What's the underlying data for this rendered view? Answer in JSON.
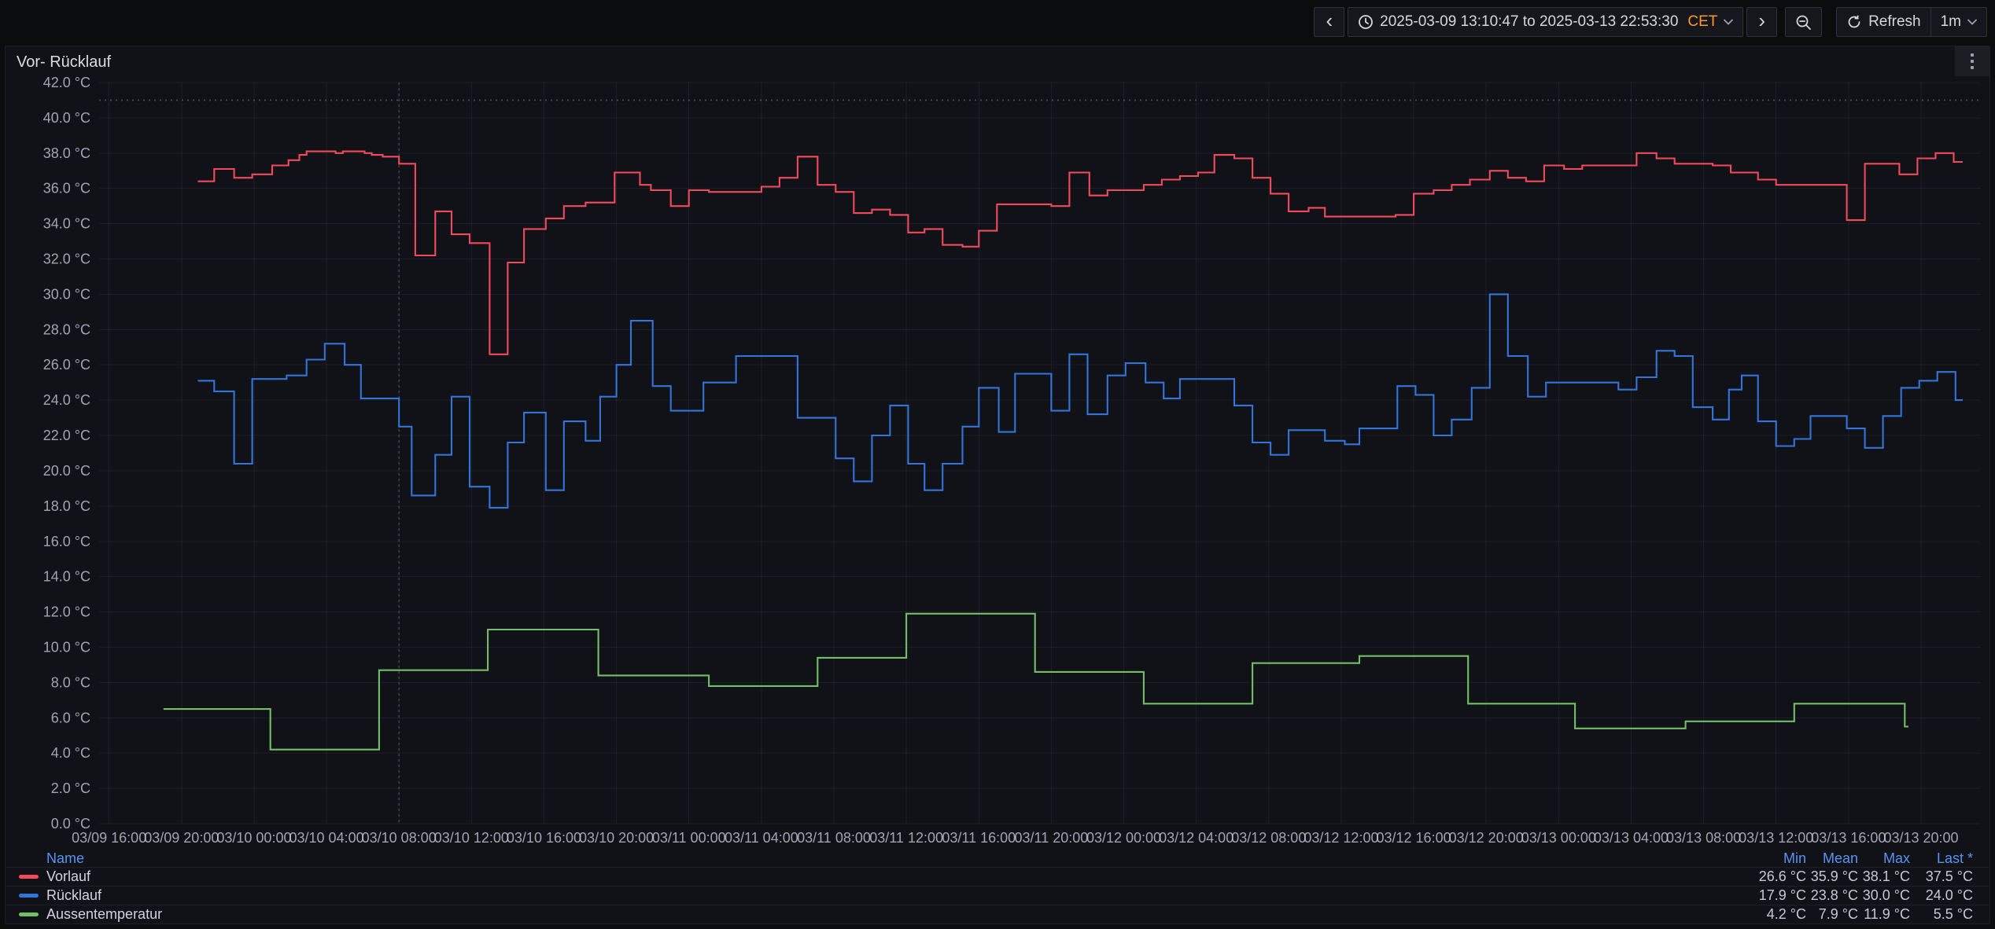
{
  "toolbar": {
    "prev_label": "‹",
    "next_label": "›",
    "time_range": "2025-03-09 13:10:47 to 2025-03-13 22:53:30",
    "timezone": "CET",
    "refresh_label": "Refresh",
    "refresh_interval": "1m"
  },
  "panel": {
    "title": "Vor- Rücklauf"
  },
  "icons": {
    "clock": "clock-outline-circle",
    "chevron_down": "caret-down-svg",
    "zoom_out": "magnifier-minus",
    "refresh": "circular-arrow",
    "kebab": "three-vertical-dots"
  },
  "colors": {
    "vorlauf_red": "#F2495C",
    "ruecklauf_blue": "#3274D9",
    "aussen_green": "#73BF69",
    "header_blue": "#5794F2",
    "timezone_orange": "#FF9830",
    "axis_text": "rgba(204,204,220,0.78)",
    "grid": "rgba(204,204,220,0.07)"
  },
  "legend": {
    "headers": {
      "name": "Name",
      "min": "Min",
      "mean": "Mean",
      "max": "Max",
      "last": "Last *"
    },
    "rows": [
      {
        "name": "Vorlauf",
        "color": "#F2495C",
        "min": "26.6 °C",
        "mean": "35.9 °C",
        "max": "38.1 °C",
        "last": "37.5 °C"
      },
      {
        "name": "Rücklauf",
        "color": "#3274D9",
        "min": "17.9 °C",
        "mean": "23.8 °C",
        "max": "30.0 °C",
        "last": "24.0 °C"
      },
      {
        "name": "Aussentemperatur",
        "color": "#73BF69",
        "min": "4.2 °C",
        "mean": "7.9 °C",
        "max": "11.9 °C",
        "last": "5.5 °C"
      }
    ]
  },
  "chart_data": {
    "type": "line",
    "step": "after",
    "x_unit": "hours after 03/09 16:00",
    "xlim": [
      -0.55,
      103.3
    ],
    "ylim": [
      0,
      42
    ],
    "grid": true,
    "threshold": {
      "value": 41,
      "style": "dotted"
    },
    "annotation_vline": {
      "t": 16,
      "at_label": "03/10 08:00",
      "style": "dashed"
    },
    "y_ticks": [
      {
        "v": 0,
        "label": "0.0 °C"
      },
      {
        "v": 2,
        "label": "2.0 °C"
      },
      {
        "v": 4,
        "label": "4.0 °C"
      },
      {
        "v": 6,
        "label": "6.0 °C"
      },
      {
        "v": 8,
        "label": "8.0 °C"
      },
      {
        "v": 10,
        "label": "10.0 °C"
      },
      {
        "v": 12,
        "label": "12.0 °C"
      },
      {
        "v": 14,
        "label": "14.0 °C"
      },
      {
        "v": 16,
        "label": "16.0 °C"
      },
      {
        "v": 18,
        "label": "18.0 °C"
      },
      {
        "v": 20,
        "label": "20.0 °C"
      },
      {
        "v": 22,
        "label": "22.0 °C"
      },
      {
        "v": 24,
        "label": "24.0 °C"
      },
      {
        "v": 26,
        "label": "26.0 °C"
      },
      {
        "v": 28,
        "label": "28.0 °C"
      },
      {
        "v": 30,
        "label": "30.0 °C"
      },
      {
        "v": 32,
        "label": "32.0 °C"
      },
      {
        "v": 34,
        "label": "34.0 °C"
      },
      {
        "v": 36,
        "label": "36.0 °C"
      },
      {
        "v": 38,
        "label": "38.0 °C"
      },
      {
        "v": 40,
        "label": "40.0 °C"
      },
      {
        "v": 42,
        "label": "42.0 °C"
      }
    ],
    "x_ticks": [
      {
        "t": 0,
        "label": "03/09 16:00"
      },
      {
        "t": 4,
        "label": "03/09 20:00"
      },
      {
        "t": 8,
        "label": "03/10 00:00"
      },
      {
        "t": 12,
        "label": "03/10 04:00"
      },
      {
        "t": 16,
        "label": "03/10 08:00"
      },
      {
        "t": 20,
        "label": "03/10 12:00"
      },
      {
        "t": 24,
        "label": "03/10 16:00"
      },
      {
        "t": 28,
        "label": "03/10 20:00"
      },
      {
        "t": 32,
        "label": "03/11 00:00"
      },
      {
        "t": 36,
        "label": "03/11 04:00"
      },
      {
        "t": 40,
        "label": "03/11 08:00"
      },
      {
        "t": 44,
        "label": "03/11 12:00"
      },
      {
        "t": 48,
        "label": "03/11 16:00"
      },
      {
        "t": 52,
        "label": "03/11 20:00"
      },
      {
        "t": 56,
        "label": "03/12 00:00"
      },
      {
        "t": 60,
        "label": "03/12 04:00"
      },
      {
        "t": 64,
        "label": "03/12 08:00"
      },
      {
        "t": 68,
        "label": "03/12 12:00"
      },
      {
        "t": 72,
        "label": "03/12 16:00"
      },
      {
        "t": 76,
        "label": "03/12 20:00"
      },
      {
        "t": 80,
        "label": "03/13 00:00"
      },
      {
        "t": 84,
        "label": "03/13 04:00"
      },
      {
        "t": 88,
        "label": "03/13 08:00"
      },
      {
        "t": 92,
        "label": "03/13 12:00"
      },
      {
        "t": 96,
        "label": "03/13 16:00"
      },
      {
        "t": 100,
        "label": "03/13 20:00"
      }
    ],
    "series": [
      {
        "name": "Vorlauf",
        "color": "#F2495C",
        "points": [
          [
            4.9,
            36.4
          ],
          [
            5.8,
            37.1
          ],
          [
            6.9,
            36.6
          ],
          [
            7.9,
            36.8
          ],
          [
            9.0,
            37.3
          ],
          [
            9.9,
            37.6
          ],
          [
            10.5,
            37.9
          ],
          [
            10.9,
            38.1
          ],
          [
            12.5,
            38.0
          ],
          [
            12.9,
            38.1
          ],
          [
            14.1,
            38.0
          ],
          [
            14.5,
            37.9
          ],
          [
            15.1,
            37.8
          ],
          [
            16.0,
            37.4
          ],
          [
            16.9,
            32.2
          ],
          [
            18.0,
            34.7
          ],
          [
            18.9,
            33.4
          ],
          [
            19.9,
            32.9
          ],
          [
            21.0,
            26.6
          ],
          [
            22.0,
            31.8
          ],
          [
            22.9,
            33.7
          ],
          [
            24.1,
            34.3
          ],
          [
            25.1,
            35.0
          ],
          [
            26.3,
            35.2
          ],
          [
            27.9,
            36.9
          ],
          [
            29.3,
            36.2
          ],
          [
            29.9,
            35.9
          ],
          [
            31.0,
            35.0
          ],
          [
            32.0,
            35.9
          ],
          [
            33.1,
            35.8
          ],
          [
            36.0,
            36.1
          ],
          [
            37.0,
            36.6
          ],
          [
            38.0,
            37.8
          ],
          [
            39.1,
            36.2
          ],
          [
            40.1,
            35.8
          ],
          [
            41.1,
            34.6
          ],
          [
            42.1,
            34.8
          ],
          [
            43.1,
            34.5
          ],
          [
            44.1,
            33.5
          ],
          [
            45.0,
            33.7
          ],
          [
            46.0,
            32.8
          ],
          [
            47.1,
            32.7
          ],
          [
            48.0,
            33.6
          ],
          [
            49.0,
            35.1
          ],
          [
            52.0,
            35.0
          ],
          [
            53.0,
            36.9
          ],
          [
            54.1,
            35.6
          ],
          [
            55.1,
            35.9
          ],
          [
            57.1,
            36.2
          ],
          [
            58.1,
            36.5
          ],
          [
            59.1,
            36.7
          ],
          [
            60.1,
            36.9
          ],
          [
            61.0,
            37.9
          ],
          [
            62.1,
            37.7
          ],
          [
            63.1,
            36.6
          ],
          [
            64.1,
            35.7
          ],
          [
            65.1,
            34.7
          ],
          [
            66.2,
            34.9
          ],
          [
            67.1,
            34.4
          ],
          [
            71.0,
            34.5
          ],
          [
            72.0,
            35.7
          ],
          [
            73.1,
            35.9
          ],
          [
            74.1,
            36.2
          ],
          [
            75.1,
            36.5
          ],
          [
            76.2,
            37.0
          ],
          [
            77.2,
            36.6
          ],
          [
            78.2,
            36.4
          ],
          [
            79.2,
            37.3
          ],
          [
            80.3,
            37.1
          ],
          [
            81.3,
            37.3
          ],
          [
            84.3,
            38.0
          ],
          [
            85.4,
            37.7
          ],
          [
            86.4,
            37.4
          ],
          [
            88.5,
            37.3
          ],
          [
            89.5,
            36.9
          ],
          [
            91.0,
            36.5
          ],
          [
            92.0,
            36.2
          ],
          [
            95.9,
            34.2
          ],
          [
            96.9,
            37.4
          ],
          [
            98.8,
            36.8
          ],
          [
            99.8,
            37.7
          ],
          [
            100.8,
            38.0
          ],
          [
            101.8,
            37.5
          ],
          [
            102.3,
            37.5
          ]
        ]
      },
      {
        "name": "Rücklauf",
        "color": "#3274D9",
        "points": [
          [
            4.9,
            25.1
          ],
          [
            5.8,
            24.5
          ],
          [
            6.9,
            20.4
          ],
          [
            7.9,
            25.2
          ],
          [
            9.8,
            25.4
          ],
          [
            10.9,
            26.3
          ],
          [
            11.9,
            27.2
          ],
          [
            13.0,
            26.0
          ],
          [
            13.9,
            24.1
          ],
          [
            16.0,
            22.5
          ],
          [
            16.7,
            18.6
          ],
          [
            18.0,
            20.9
          ],
          [
            18.9,
            24.2
          ],
          [
            19.9,
            19.1
          ],
          [
            21.0,
            17.9
          ],
          [
            22.0,
            21.6
          ],
          [
            22.9,
            23.3
          ],
          [
            24.1,
            18.9
          ],
          [
            25.1,
            22.8
          ],
          [
            26.3,
            21.7
          ],
          [
            27.1,
            24.2
          ],
          [
            28.0,
            26.0
          ],
          [
            28.8,
            28.5
          ],
          [
            30.0,
            24.8
          ],
          [
            31.0,
            23.4
          ],
          [
            32.8,
            25.0
          ],
          [
            34.6,
            26.5
          ],
          [
            38.0,
            23.0
          ],
          [
            40.1,
            20.7
          ],
          [
            41.1,
            19.4
          ],
          [
            42.1,
            22.0
          ],
          [
            43.1,
            23.7
          ],
          [
            44.1,
            20.4
          ],
          [
            45.0,
            18.9
          ],
          [
            46.0,
            20.4
          ],
          [
            47.1,
            22.5
          ],
          [
            48.0,
            24.7
          ],
          [
            49.1,
            22.2
          ],
          [
            50.0,
            25.5
          ],
          [
            52.0,
            23.4
          ],
          [
            53.0,
            26.6
          ],
          [
            54.0,
            23.2
          ],
          [
            55.1,
            25.4
          ],
          [
            56.1,
            26.1
          ],
          [
            57.2,
            25.0
          ],
          [
            58.2,
            24.1
          ],
          [
            59.1,
            25.2
          ],
          [
            62.1,
            23.7
          ],
          [
            63.1,
            21.6
          ],
          [
            64.1,
            20.9
          ],
          [
            65.1,
            22.3
          ],
          [
            67.1,
            21.7
          ],
          [
            68.2,
            21.5
          ],
          [
            69.0,
            22.4
          ],
          [
            71.1,
            24.8
          ],
          [
            72.1,
            24.3
          ],
          [
            73.1,
            22.0
          ],
          [
            74.1,
            22.9
          ],
          [
            75.2,
            24.7
          ],
          [
            76.2,
            30.0
          ],
          [
            77.2,
            26.5
          ],
          [
            78.3,
            24.2
          ],
          [
            79.3,
            25.0
          ],
          [
            83.3,
            24.6
          ],
          [
            84.3,
            25.3
          ],
          [
            85.4,
            26.8
          ],
          [
            86.4,
            26.5
          ],
          [
            87.4,
            23.6
          ],
          [
            88.5,
            22.9
          ],
          [
            89.4,
            24.6
          ],
          [
            90.1,
            25.4
          ],
          [
            91.0,
            22.8
          ],
          [
            92.0,
            21.4
          ],
          [
            93.0,
            21.8
          ],
          [
            93.9,
            23.1
          ],
          [
            95.9,
            22.4
          ],
          [
            96.9,
            21.3
          ],
          [
            97.9,
            23.1
          ],
          [
            98.9,
            24.7
          ],
          [
            99.9,
            25.1
          ],
          [
            100.9,
            25.6
          ],
          [
            101.9,
            24.0
          ],
          [
            102.3,
            24.0
          ]
        ]
      },
      {
        "name": "Aussentemperatur",
        "color": "#73BF69",
        "points": [
          [
            3.0,
            6.5
          ],
          [
            8.9,
            4.2
          ],
          [
            14.9,
            8.7
          ],
          [
            20.9,
            11.0
          ],
          [
            27.0,
            8.4
          ],
          [
            33.1,
            7.8
          ],
          [
            39.1,
            9.4
          ],
          [
            44.0,
            11.9
          ],
          [
            51.1,
            8.6
          ],
          [
            57.1,
            6.8
          ],
          [
            63.1,
            9.1
          ],
          [
            69.0,
            9.5
          ],
          [
            75.0,
            6.8
          ],
          [
            80.9,
            5.4
          ],
          [
            87.0,
            5.8
          ],
          [
            93.0,
            6.8
          ],
          [
            99.1,
            5.5
          ],
          [
            99.3,
            5.5
          ]
        ]
      }
    ]
  }
}
